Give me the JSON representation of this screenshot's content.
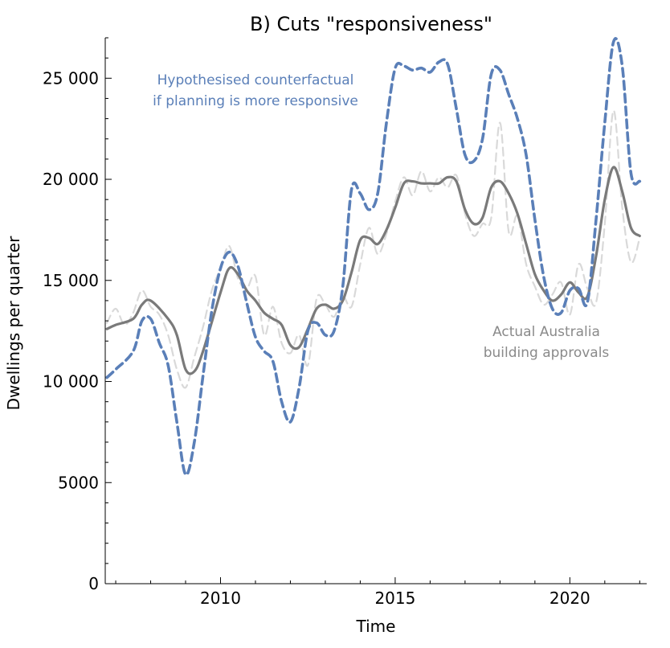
{
  "colors": {
    "counterfactual": "#5a7fb8",
    "actual_smoothed": "#7a7a7a",
    "actual_raw": "#d9d9d9",
    "axis": "#000000"
  },
  "chart_data": {
    "type": "line",
    "title": "B) Cuts \"responsiveness\"",
    "xlabel": "Time",
    "ylabel": "Dwellings per quarter",
    "xlim": [
      2006.7,
      2022.2
    ],
    "ylim": [
      0,
      27000
    ],
    "x_ticks": [
      2010,
      2015,
      2020
    ],
    "x_tick_labels": [
      "2010",
      "2015",
      "2020"
    ],
    "y_ticks": [
      0,
      5000,
      10000,
      15000,
      20000,
      25000
    ],
    "y_tick_labels": [
      "0",
      "5000",
      "10 000",
      "15 000",
      "20 000",
      "25 000"
    ],
    "grid": false,
    "annotations": [
      {
        "lines": [
          "Hypothesised counterfactual",
          "if planning is more responsive"
        ],
        "series": "counterfactual"
      },
      {
        "lines": [
          "Actual Australia",
          "building approvals"
        ],
        "series": "actual_smoothed"
      }
    ],
    "series": [
      {
        "key": "actual_raw",
        "style": "dashed",
        "x": [
          2006.75,
          2007.0,
          2007.25,
          2007.5,
          2007.75,
          2008.0,
          2008.25,
          2008.5,
          2008.75,
          2009.0,
          2009.25,
          2009.5,
          2009.75,
          2010.0,
          2010.25,
          2010.5,
          2010.75,
          2011.0,
          2011.25,
          2011.5,
          2011.75,
          2012.0,
          2012.25,
          2012.5,
          2012.75,
          2013.0,
          2013.25,
          2013.5,
          2013.75,
          2014.0,
          2014.25,
          2014.5,
          2014.75,
          2015.0,
          2015.25,
          2015.5,
          2015.75,
          2016.0,
          2016.25,
          2016.5,
          2016.75,
          2017.0,
          2017.25,
          2017.5,
          2017.75,
          2018.0,
          2018.25,
          2018.5,
          2018.75,
          2019.0,
          2019.25,
          2019.5,
          2019.75,
          2020.0,
          2020.25,
          2020.5,
          2020.75,
          2021.0,
          2021.25,
          2021.5,
          2021.75,
          2022.0
        ],
        "values": [
          12900,
          13600,
          12800,
          13400,
          14500,
          13700,
          13300,
          12300,
          10600,
          9700,
          11200,
          12700,
          14500,
          15600,
          16700,
          15100,
          14600,
          15200,
          12300,
          13700,
          11900,
          11400,
          12300,
          10800,
          14100,
          13800,
          13200,
          14200,
          13700,
          15800,
          17600,
          16300,
          17300,
          18900,
          20100,
          19200,
          20400,
          19400,
          20100,
          19600,
          20200,
          18300,
          17200,
          17800,
          18100,
          22800,
          17400,
          18200,
          15800,
          14700,
          13800,
          14300,
          14900,
          13300,
          15800,
          14600,
          13900,
          17800,
          23400,
          18600,
          15900,
          17100
        ]
      },
      {
        "key": "actual_smoothed",
        "style": "solid",
        "x": [
          2006.75,
          2007.0,
          2007.5,
          2007.75,
          2008.0,
          2008.5,
          2008.75,
          2009.0,
          2009.25,
          2009.5,
          2010.0,
          2010.25,
          2010.5,
          2010.75,
          2011.0,
          2011.25,
          2011.5,
          2011.75,
          2012.0,
          2012.25,
          2012.5,
          2012.75,
          2013.0,
          2013.25,
          2013.5,
          2013.75,
          2014.0,
          2014.25,
          2014.5,
          2014.75,
          2015.0,
          2015.25,
          2015.5,
          2015.75,
          2016.0,
          2016.25,
          2016.5,
          2016.75,
          2017.0,
          2017.25,
          2017.5,
          2017.75,
          2018.0,
          2018.25,
          2018.5,
          2018.75,
          2019.0,
          2019.25,
          2019.5,
          2019.75,
          2020.0,
          2020.25,
          2020.5,
          2020.75,
          2021.0,
          2021.25,
          2021.5,
          2021.75,
          2022.0
        ],
        "values": [
          12600,
          12800,
          13100,
          13800,
          14000,
          13100,
          12300,
          10600,
          10500,
          11500,
          14400,
          15600,
          15300,
          14500,
          14000,
          13400,
          13100,
          12800,
          11800,
          11700,
          12600,
          13600,
          13800,
          13600,
          14000,
          15400,
          17000,
          17100,
          16800,
          17500,
          18600,
          19800,
          19900,
          19800,
          19800,
          19800,
          20100,
          19900,
          18500,
          17800,
          18100,
          19600,
          19900,
          19300,
          18300,
          16800,
          15300,
          14500,
          14000,
          14300,
          14900,
          14400,
          14200,
          16200,
          19000,
          20600,
          19400,
          17600,
          17200
        ]
      },
      {
        "key": "counterfactual",
        "style": "dashed",
        "x": [
          2006.75,
          2007.0,
          2007.5,
          2007.75,
          2008.0,
          2008.25,
          2008.5,
          2008.75,
          2009.0,
          2009.25,
          2009.5,
          2009.75,
          2010.0,
          2010.25,
          2010.5,
          2010.75,
          2011.0,
          2011.25,
          2011.5,
          2011.75,
          2012.0,
          2012.25,
          2012.5,
          2012.75,
          2013.0,
          2013.25,
          2013.5,
          2013.75,
          2014.0,
          2014.25,
          2014.5,
          2014.75,
          2015.0,
          2015.25,
          2015.5,
          2015.75,
          2016.0,
          2016.25,
          2016.5,
          2016.75,
          2017.0,
          2017.25,
          2017.5,
          2017.75,
          2018.0,
          2018.25,
          2018.5,
          2018.75,
          2019.0,
          2019.25,
          2019.5,
          2019.75,
          2020.0,
          2020.25,
          2020.5,
          2020.75,
          2021.0,
          2021.25,
          2021.5,
          2021.75,
          2022.0
        ],
        "values": [
          10200,
          10600,
          11500,
          13000,
          13100,
          11900,
          10800,
          8000,
          5400,
          7000,
          10300,
          13500,
          15600,
          16400,
          15700,
          13900,
          12200,
          11500,
          11000,
          9000,
          8000,
          9700,
          12500,
          12900,
          12300,
          12500,
          14700,
          19500,
          19300,
          18500,
          19300,
          22800,
          25500,
          25600,
          25400,
          25500,
          25300,
          25800,
          25700,
          23500,
          21200,
          20900,
          22000,
          25200,
          25400,
          24200,
          23000,
          21200,
          18000,
          15200,
          13600,
          13400,
          14500,
          14600,
          13900,
          18000,
          22800,
          26800,
          25600,
          20300,
          19900
        ]
      }
    ]
  }
}
